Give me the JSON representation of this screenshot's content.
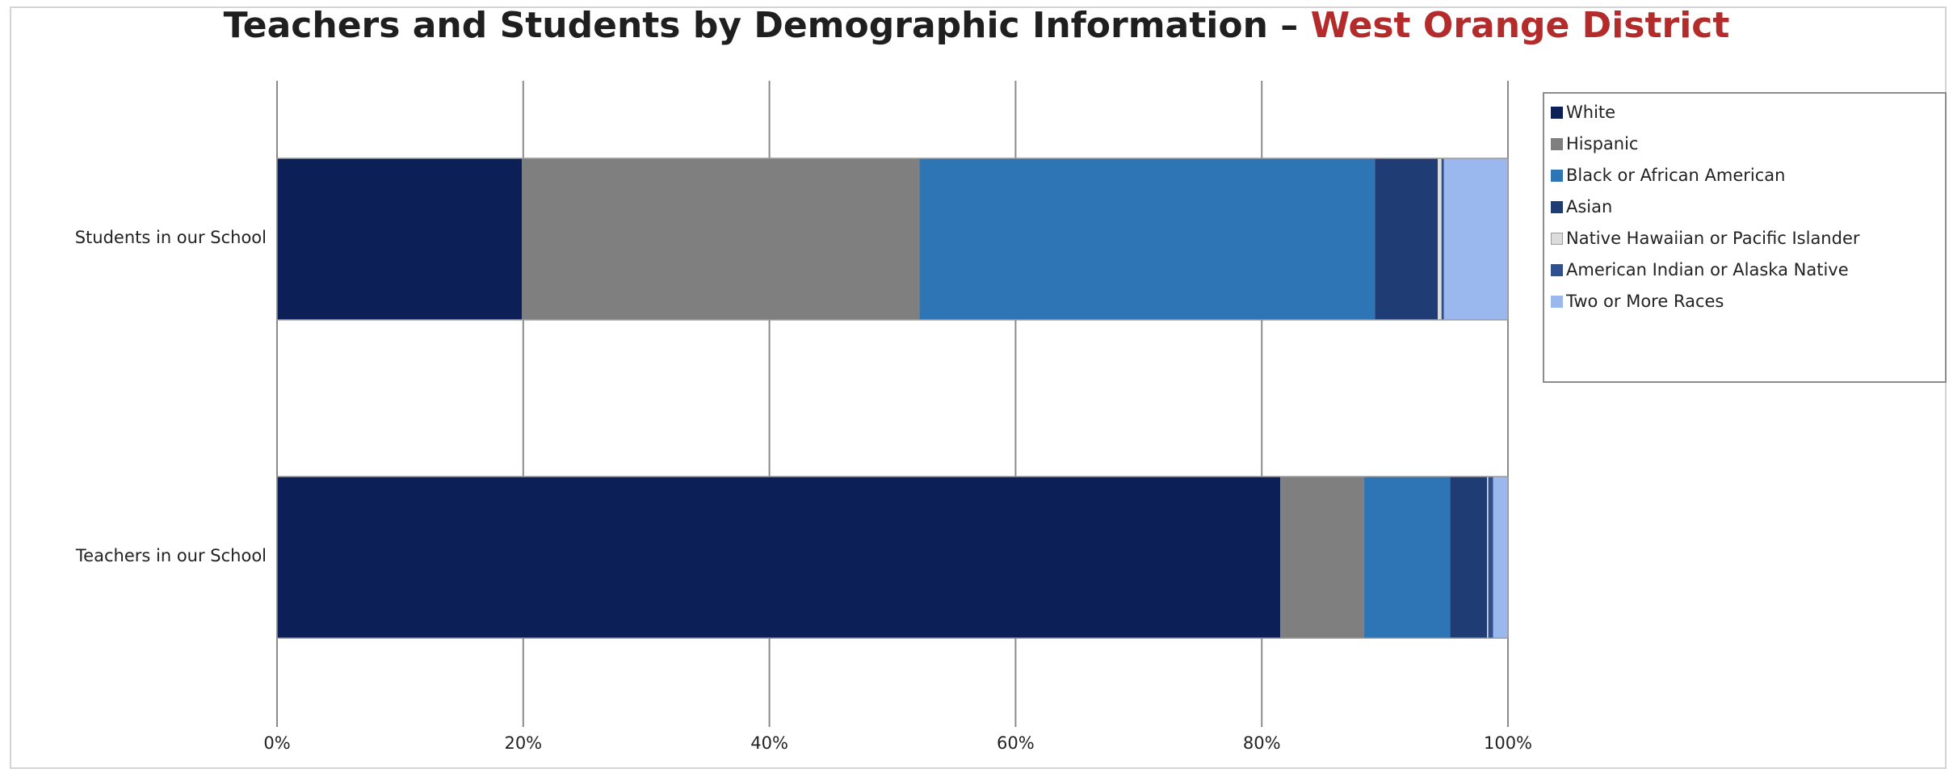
{
  "chart_data": {
    "type": "bar",
    "orientation": "horizontal",
    "stacked": "percent",
    "title": "Teachers and Students by Demographic Information – ",
    "title_highlight": "West Orange District",
    "categories": [
      "Students in our School",
      "Teachers in our School"
    ],
    "series": [
      {
        "name": "White",
        "color": "#0c1f57",
        "values": [
          19.9,
          81.5
        ]
      },
      {
        "name": "Hispanic",
        "color": "#7f7f7f",
        "values": [
          32.3,
          6.8
        ]
      },
      {
        "name": "Black or African American",
        "color": "#2e75b6",
        "values": [
          37.0,
          7.0
        ]
      },
      {
        "name": "Asian",
        "color": "#203c74",
        "values": [
          5.1,
          3.0
        ]
      },
      {
        "name": "Native Hawaiian or Pacific Islander",
        "color": "#dcdcdc",
        "values": [
          0.3,
          0.1
        ]
      },
      {
        "name": "American Indian or Alaska Native",
        "color": "#2f4f8f",
        "values": [
          0.2,
          0.4
        ]
      },
      {
        "name": "Two or More Races",
        "color": "#9ab7ee",
        "values": [
          5.2,
          1.2
        ]
      }
    ],
    "xlim": [
      0,
      100
    ],
    "x_ticks": [
      "0%",
      "20%",
      "40%",
      "60%",
      "80%",
      "100%"
    ],
    "grid": true,
    "legend_position": "right"
  }
}
